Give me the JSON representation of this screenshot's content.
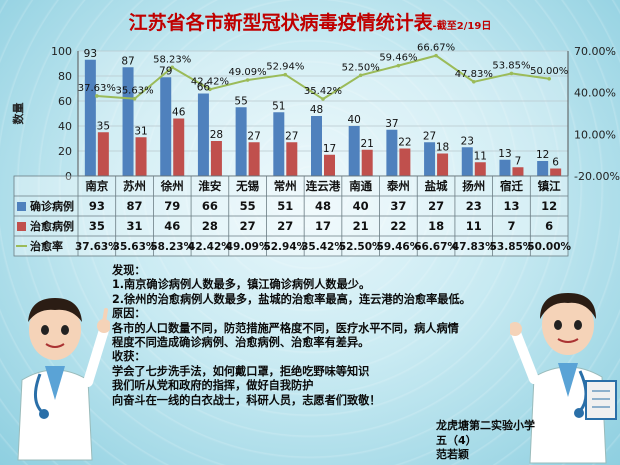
{
  "title": "江苏省各市新型冠状病毒疫情统计表",
  "subtitle": "-截至2/19日",
  "chart_data": {
    "type": "bar",
    "categories": [
      "南京",
      "苏州",
      "徐州",
      "淮安",
      "无锡",
      "常州",
      "连云港",
      "南通",
      "泰州",
      "盐城",
      "扬州",
      "宿迁",
      "镇江"
    ],
    "series": [
      {
        "name": "确诊病例",
        "axis": "left",
        "type": "bar",
        "color": "#4f81bd",
        "values": [
          93,
          87,
          79,
          66,
          55,
          51,
          48,
          40,
          37,
          27,
          23,
          13,
          12
        ]
      },
      {
        "name": "治愈病例",
        "axis": "left",
        "type": "bar",
        "color": "#c0504d",
        "values": [
          35,
          31,
          46,
          28,
          27,
          27,
          17,
          21,
          22,
          18,
          11,
          7,
          6
        ]
      },
      {
        "name": "治愈率",
        "axis": "right",
        "type": "line",
        "color": "#9bbb59",
        "values": [
          37.63,
          35.63,
          58.23,
          42.42,
          49.09,
          52.94,
          35.42,
          52.5,
          59.46,
          66.67,
          47.83,
          53.85,
          50.0
        ],
        "labels": [
          "37.63%",
          "35.63%",
          "58.23%",
          "42.42%",
          "49.09%",
          "52.94%",
          "35.42%",
          "52.50%",
          "59.46%",
          "66.67%",
          "47.83%",
          "53.85%",
          "50.00%"
        ]
      }
    ],
    "ylabel": "数量",
    "ylim": [
      0,
      100
    ],
    "yticks": [
      "0",
      "20",
      "40",
      "60",
      "80",
      "100"
    ],
    "y2lim": [
      -20,
      70
    ],
    "y2ticks": [
      "-20.00%",
      "10.00%",
      "40.00%",
      "70.00%"
    ],
    "grid": true,
    "legend": "data-table"
  },
  "notes": {
    "lines": [
      "发现：",
      "1.南京确诊病例人数最多，镇江确诊病例人数最少。",
      "2.徐州的治愈病例人数最多，盐城的治愈率最高，连云港的治愈率最低。",
      "原因：",
      "各市的人口数量不同，防范措施严格度不同，医疗水平不同，病人病情",
      "程度不同造成确诊病例、治愈病例、治愈率有差异。",
      "收获：",
      "学会了七步洗手法，如何戴口罩，拒绝吃野味等知识",
      "我们听从党和政府的指挥，做好自我防护",
      "向奋斗在一线的白衣战士，科研人员，志愿者们致敬！"
    ]
  },
  "signature": {
    "school": "龙虎塘第二实验小学",
    "class": "五（4）",
    "name": "范若颖"
  },
  "colors": {
    "title": "#c00000",
    "bar1": "#4f81bd",
    "bar2": "#c0504d",
    "line": "#9bbb59"
  }
}
